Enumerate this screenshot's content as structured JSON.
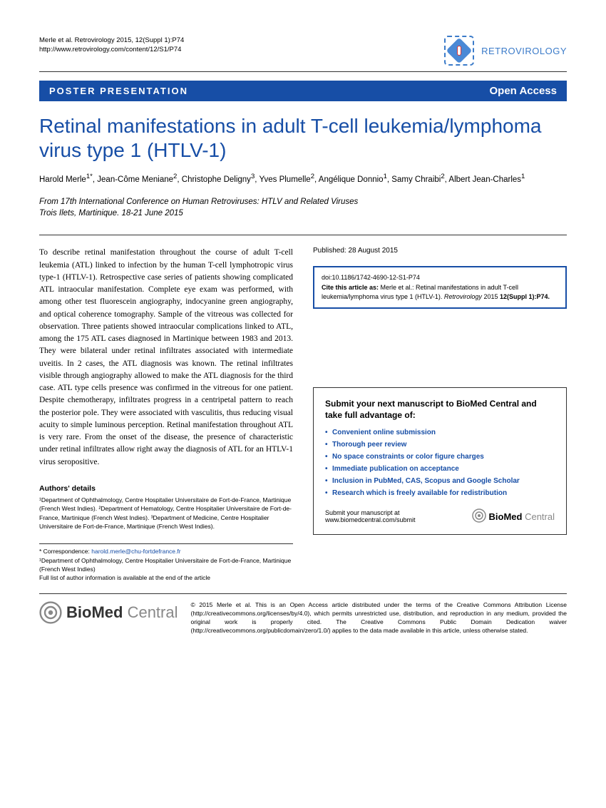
{
  "header": {
    "citation_line1": "Merle et al. Retrovirology 2015, 12(Suppl 1):P74",
    "citation_line2": "http://www.retrovirology.com/content/12/S1/P74",
    "journal_name": "RETROVIROLOGY"
  },
  "banner": {
    "type": "POSTER PRESENTATION",
    "access": "Open Access"
  },
  "title": "Retinal manifestations in adult T-cell leukemia/lymphoma virus type 1 (HTLV-1)",
  "authors_html": "Harold Merle<sup>1*</sup>, Jean-Côme Meniane<sup>2</sup>, Christophe Deligny<sup>3</sup>, Yves Plumelle<sup>2</sup>, Angélique Donnio<sup>1</sup>, Samy Chraibi<sup>2</sup>, Albert Jean-Charles<sup>1</sup>",
  "event": {
    "line1": "From 17th International Conference on Human Retroviruses: HTLV and Related Viruses",
    "line2": "Trois Ilets, Martinique. 18-21 June 2015"
  },
  "abstract": "To describe retinal manifestation throughout the course of adult T-cell leukemia (ATL) linked to infection by the human T-cell lymphotropic virus type-1 (HTLV-1). Retrospective case series of patients showing complicated ATL intraocular manifestation. Complete eye exam was performed, with among other test fluorescein angiography, indocyanine green angiography, and optical coherence tomography. Sample of the vitreous was collected for observation. Three patients showed intraocular complications linked to ATL, among the 175 ATL cases diagnosed in Martinique between 1983 and 2013. They were bilateral under retinal infiltrates associated with intermediate uveitis. In 2 cases, the ATL diagnosis was known. The retinal infiltrates visible through angiography allowed to make the ATL diagnosis for the third case. ATL type cells presence was confirmed in the vitreous for one patient. Despite chemotherapy, infiltrates progress in a centripetal pattern to reach the posterior pole. They were associated with vasculitis, thus reducing visual acuity to simple luminous perception. Retinal manifestation throughout ATL is very rare. From the onset of the disease, the presence of characteristic under retinal infiltrates allow right away the diagnosis of ATL for an HTLV-1 virus seropositive.",
  "authors_details": {
    "heading": "Authors' details",
    "dept1": "¹Department of Ophthalmology, Centre Hospitalier Universitaire de Fort-de-France, Martinique (French West Indies). ",
    "dept2": "²Department of Hematology, Centre Hospitalier Universitaire de Fort-de-France, Martinique (French West Indies). ",
    "dept3": "³Department of Medicine, Centre Hospitalier Universitaire de Fort-de-France, Martinique (French West Indies)."
  },
  "pub_date": "Published: 28 August 2015",
  "cite_box": {
    "doi": "doi:10.1186/1742-4690-12-S1-P74",
    "cite_label": "Cite this article as: ",
    "cite_text": "Merle et al.: Retinal manifestations in adult T-cell leukemia/lymphoma virus type 1 (HTLV-1). ",
    "cite_journal": "Retrovirology ",
    "cite_year": "2015 ",
    "cite_vol": "12(Suppl 1):P74."
  },
  "correspondence": {
    "email_label": "* Correspondence: ",
    "email": "harold.merle@chu-fortdefrance.fr",
    "affil": "¹Department of Ophthalmology, Centre Hospitalier Universitaire de Fort-de-France, Martinique (French West Indies)",
    "fulllist": "Full list of author information is available at the end of the article"
  },
  "submit_box": {
    "title": "Submit your next manuscript to BioMed Central and take full advantage of:",
    "items": [
      "Convenient online submission",
      "Thorough peer review",
      "No space constraints or color figure charges",
      "Immediate publication on acceptance",
      "Inclusion in PubMed, CAS, Scopus and Google Scholar",
      "Research which is freely available for redistribution"
    ],
    "footer_text": "Submit your manuscript at www.biomedcentral.com/submit",
    "logo_bio": "BioMed",
    "logo_central": " Central"
  },
  "footer": {
    "logo_bio": "BioMed",
    "logo_central": " Central",
    "license": "© 2015 Merle et al. This is an Open Access article distributed under the terms of the Creative Commons Attribution License (http://creativecommons.org/licenses/by/4.0), which permits unrestricted use, distribution, and reproduction in any medium, provided the original work is properly cited. The Creative Commons Public Domain Dedication waiver (http://creativecommons.org/publicdomain/zero/1.0/) applies to the data made available in this article, unless otherwise stated."
  }
}
